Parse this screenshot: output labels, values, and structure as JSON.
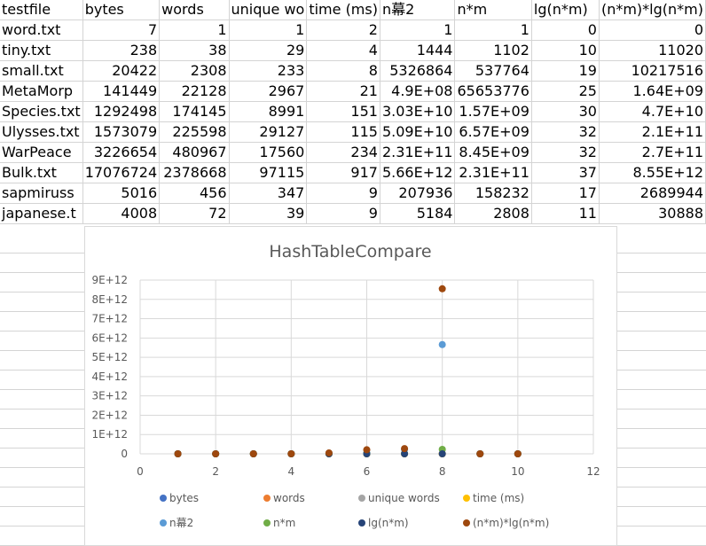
{
  "sheet": {
    "headers": [
      "testfile",
      "bytes",
      "words",
      "unique wo",
      "time (ms)",
      "n幕2",
      "n*m",
      "lg(n*m)",
      "(n*m)*lg(n*m)"
    ],
    "rows": [
      [
        "word.txt",
        "7",
        "1",
        "1",
        "2",
        "1",
        "1",
        "0",
        "0"
      ],
      [
        "tiny.txt",
        "238",
        "38",
        "29",
        "4",
        "1444",
        "1102",
        "10",
        "11020"
      ],
      [
        "small.txt",
        "20422",
        "2308",
        "233",
        "8",
        "5326864",
        "537764",
        "19",
        "10217516"
      ],
      [
        "MetaMorp",
        "141449",
        "22128",
        "2967",
        "21",
        "4.9E+08",
        "65653776",
        "25",
        "1.64E+09"
      ],
      [
        "Species.txt",
        "1292498",
        "174145",
        "8991",
        "151",
        "3.03E+10",
        "1.57E+09",
        "30",
        "4.7E+10"
      ],
      [
        "Ulysses.txt",
        "1573079",
        "225598",
        "29127",
        "115",
        "5.09E+10",
        "6.57E+09",
        "32",
        "2.1E+11"
      ],
      [
        "WarPeace",
        "3226654",
        "480967",
        "17560",
        "234",
        "2.31E+11",
        "8.45E+09",
        "32",
        "2.7E+11"
      ],
      [
        "Bulk.txt",
        "17076724",
        "2378668",
        "97115",
        "917",
        "5.66E+12",
        "2.31E+11",
        "37",
        "8.55E+12"
      ],
      [
        "sapmiruss",
        "5016",
        "456",
        "347",
        "9",
        "207936",
        "158232",
        "17",
        "2689944"
      ],
      [
        "japanese.t",
        "4008",
        "72",
        "39",
        "9",
        "5184",
        "2808",
        "11",
        "30888"
      ]
    ]
  },
  "chart_data": {
    "type": "scatter",
    "title": "HashTableCompare",
    "xlabel": "",
    "ylabel": "",
    "xlim": [
      0,
      12
    ],
    "ylim": [
      0,
      9000000000000
    ],
    "x_ticks": [
      "0",
      "2",
      "4",
      "6",
      "8",
      "10",
      "12"
    ],
    "y_ticks": [
      "0",
      "1E+12",
      "2E+12",
      "3E+12",
      "4E+12",
      "5E+12",
      "6E+12",
      "7E+12",
      "8E+12",
      "9E+12"
    ],
    "grid": true,
    "legend_position": "bottom",
    "x": [
      1,
      2,
      3,
      4,
      5,
      6,
      7,
      8,
      9,
      10
    ],
    "series": [
      {
        "name": "bytes",
        "color": "#4472c4",
        "values": [
          7,
          238,
          20422,
          141449,
          1292498,
          1573079,
          3226654,
          17076724,
          5016,
          4008
        ]
      },
      {
        "name": "words",
        "color": "#ed7d31",
        "values": [
          1,
          38,
          2308,
          22128,
          174145,
          225598,
          480967,
          2378668,
          456,
          72
        ]
      },
      {
        "name": "unique words",
        "color": "#a5a5a5",
        "values": [
          1,
          29,
          233,
          2967,
          8991,
          29127,
          17560,
          97115,
          347,
          39
        ]
      },
      {
        "name": "time (ms)",
        "color": "#ffc000",
        "values": [
          2,
          4,
          8,
          21,
          151,
          115,
          234,
          917,
          9,
          9
        ]
      },
      {
        "name": "n幕2",
        "color": "#5b9bd5",
        "values": [
          1,
          1444,
          5326864,
          490000000,
          30300000000,
          50900000000,
          231000000000,
          5660000000000,
          207936,
          5184
        ]
      },
      {
        "name": "n*m",
        "color": "#70ad47",
        "values": [
          1,
          1102,
          537764,
          65653776,
          1570000000,
          6570000000,
          8450000000,
          231000000000,
          158232,
          2808
        ]
      },
      {
        "name": "lg(n*m)",
        "color": "#264478",
        "values": [
          0,
          10,
          19,
          25,
          30,
          32,
          32,
          37,
          17,
          11
        ]
      },
      {
        "name": "(n*m)*lg(n*m)",
        "color": "#9e480e",
        "values": [
          0,
          11020,
          10217516,
          1640000000,
          47000000000,
          210000000000,
          270000000000,
          8550000000000,
          2689944,
          30888
        ]
      }
    ]
  }
}
